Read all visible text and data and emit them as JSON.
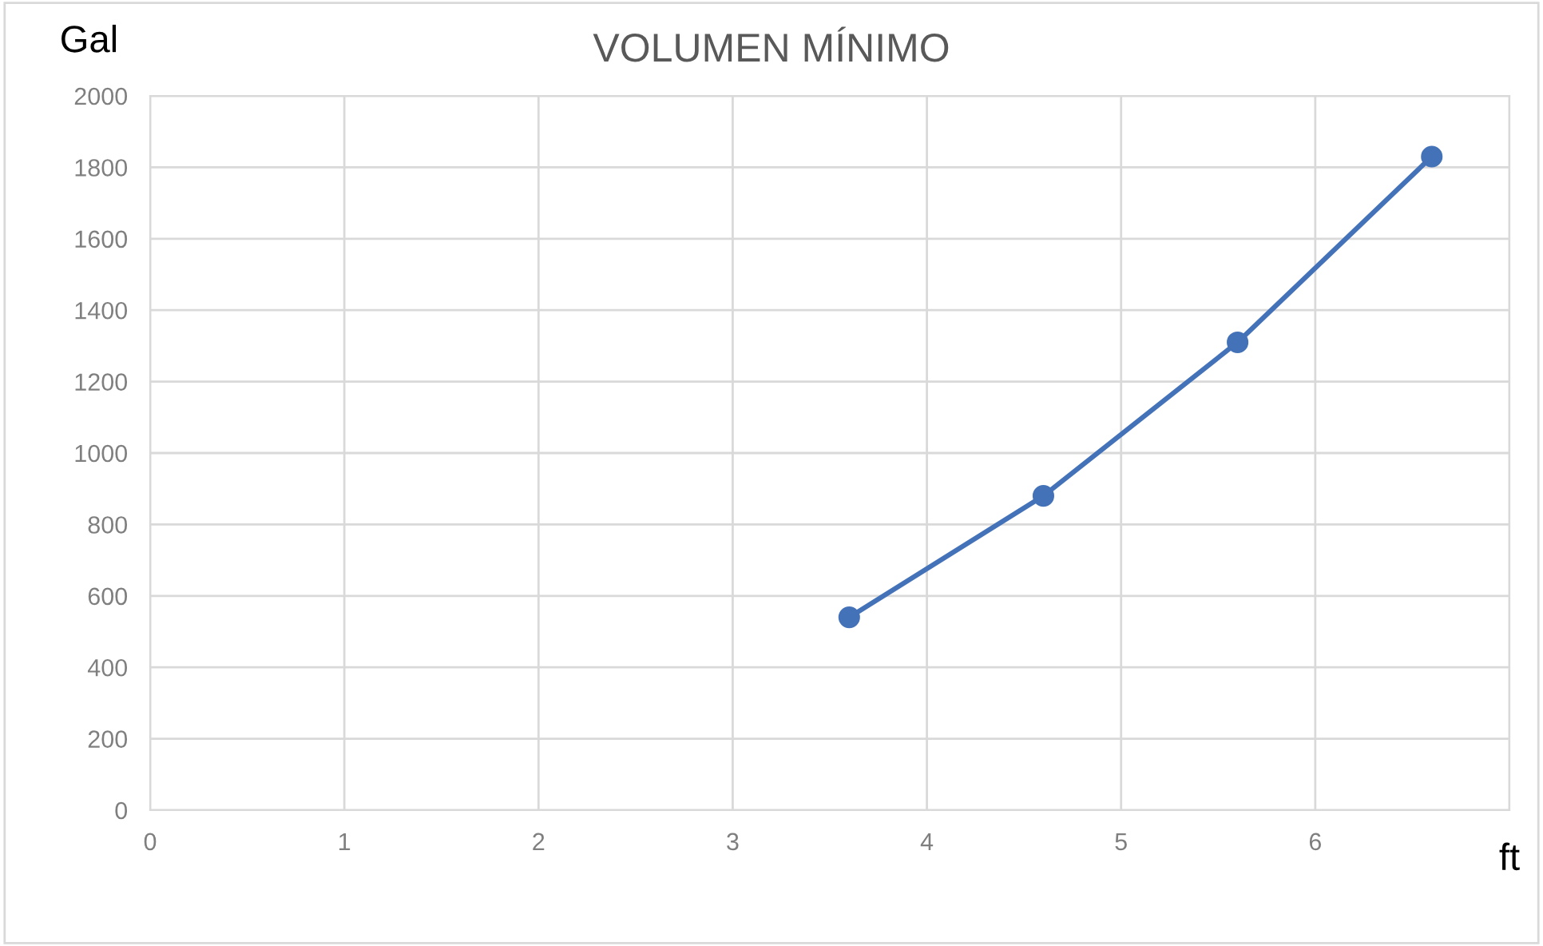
{
  "chart_data": {
    "type": "line",
    "title": "VOLUMEN MÍNIMO",
    "xlabel": "ft",
    "ylabel": "Gal",
    "x": [
      3.6,
      4.6,
      5.6,
      6.6
    ],
    "series": [
      {
        "color": "#4472b8",
        "values": [
          540,
          880,
          1310,
          1830
        ]
      }
    ],
    "xlim": [
      0,
      7
    ],
    "xticks": [
      0,
      1,
      2,
      3,
      4,
      5,
      6,
      {
        "value": 7,
        "label": null
      }
    ],
    "ylim": [
      0,
      2000
    ],
    "yticks": [
      0,
      200,
      400,
      600,
      800,
      1000,
      1200,
      1400,
      1600,
      1800,
      2000
    ],
    "grid": true,
    "marker": "circle",
    "line_style": "solid"
  }
}
